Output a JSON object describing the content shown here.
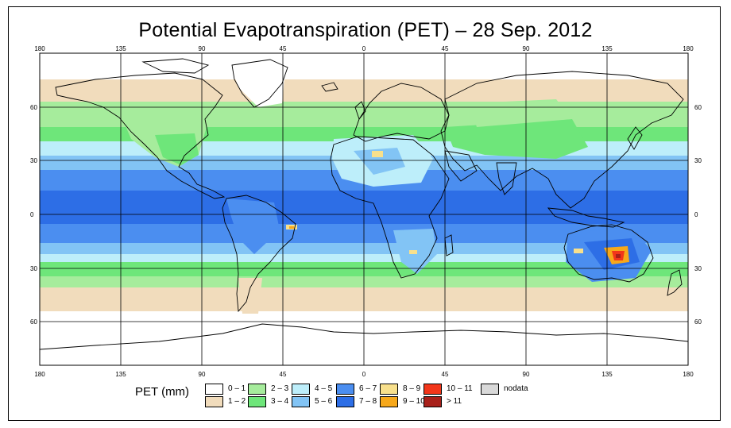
{
  "title": "Potential Evapotranspiration (PET) – 28 Sep. 2012",
  "map": {
    "top_lon_labels": [
      "180",
      "135",
      "90",
      "45",
      "0",
      "45",
      "90",
      "135",
      "180"
    ],
    "bottom_lon_labels": [
      "180",
      "135",
      "90",
      "45",
      "0",
      "45",
      "90",
      "135",
      "180"
    ],
    "left_lat_labels": [
      "60",
      "30",
      "0",
      "30",
      "60"
    ],
    "right_lat_labels": [
      "60",
      "30",
      "0",
      "30",
      "60"
    ]
  },
  "legend": {
    "title": "PET (mm)",
    "items": [
      {
        "label": "0 – 1",
        "color": "#ffffff"
      },
      {
        "label": "1 – 2",
        "color": "#f1dcbc"
      },
      {
        "label": "2 – 3",
        "color": "#a6ec9c"
      },
      {
        "label": "3 – 4",
        "color": "#6ee67a"
      },
      {
        "label": "4 – 5",
        "color": "#bdeefa"
      },
      {
        "label": "5 – 6",
        "color": "#82c4f5"
      },
      {
        "label": "6 – 7",
        "color": "#4b8ef0"
      },
      {
        "label": "7 – 8",
        "color": "#2d6ee6"
      },
      {
        "label": "8 – 9",
        "color": "#f8e08c"
      },
      {
        "label": "9 – 10",
        "color": "#f7a81a"
      },
      {
        "label": "10 – 11",
        "color": "#f2361a"
      },
      {
        "label": "> 11",
        "color": "#a8201a"
      },
      {
        "label": "nodata",
        "color": "#d9d9d9"
      }
    ]
  }
}
